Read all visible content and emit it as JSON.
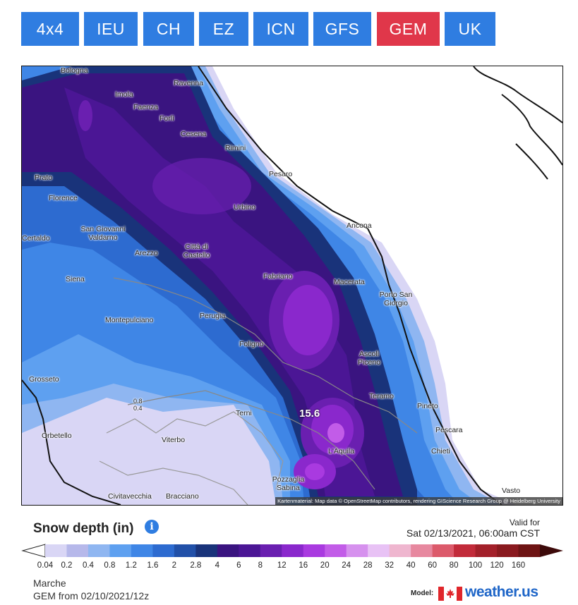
{
  "tabs": [
    {
      "label": "4x4",
      "color": "#2f7de1"
    },
    {
      "label": "IEU",
      "color": "#2f7de1"
    },
    {
      "label": "CH",
      "color": "#2f7de1"
    },
    {
      "label": "EZ",
      "color": "#2f7de1"
    },
    {
      "label": "ICN",
      "color": "#2f7de1"
    },
    {
      "label": "GFS",
      "color": "#2f7de1"
    },
    {
      "label": "GEM",
      "color": "#e0374a",
      "active": true
    },
    {
      "label": "UK",
      "color": "#2f7de1"
    }
  ],
  "map": {
    "max_value": "15.6",
    "attribution": "Kartenmaterial: Map data © OpenStreetMap contributors, rendering GIScience Research Group @ Heidelberg University",
    "cities": [
      "Bologna",
      "Ravenna",
      "Imola",
      "Faenza",
      "Forlì",
      "Cesena",
      "Rimini",
      "Pesaro",
      "Prato",
      "Florence",
      "Urbino",
      "Ancona",
      "San Giovanni Valdarno",
      "Certaldo",
      "Arezzo",
      "Città di Castello",
      "Fabriano",
      "Macerata",
      "Siena",
      "Porto San Giorgio",
      "Montepulciano",
      "Perugia",
      "Foligno",
      "Ascoli Piceno",
      "Grosseto",
      "Teramo",
      "Pineto",
      "Terni",
      "Pescara",
      "Orbetello",
      "Viterbo",
      "L'Aquila",
      "Chieti",
      "Pozzaglia Sabina",
      "Civitavecchia",
      "Bracciano",
      "Vasto"
    ],
    "contour_labels": [
      "0.8",
      "0.4"
    ]
  },
  "legend": {
    "title": "Snow depth (in)",
    "info_icon": "info-icon",
    "valid_label": "Valid for",
    "valid_date": "Sat 02/13/2021, 06:00am CST",
    "bins": [
      "0.04",
      "0.2",
      "0.4",
      "0.8",
      "1.2",
      "1.6",
      "2",
      "2.8",
      "4",
      "6",
      "8",
      "12",
      "16",
      "20",
      "24",
      "28",
      "32",
      "40",
      "60",
      "80",
      "100",
      "120",
      "160"
    ],
    "colors": [
      "#d9d6f5",
      "#b6b8ea",
      "#8fb6f1",
      "#5ea0f0",
      "#3f86e6",
      "#2d6bd0",
      "#2150a8",
      "#19337a",
      "#3a1480",
      "#4b1695",
      "#6a1fb0",
      "#8a28cc",
      "#a93ae0",
      "#c25ce8",
      "#d691ee",
      "#e8c2f5",
      "#efb6cf",
      "#e7889f",
      "#dc5a6b",
      "#c22b3a",
      "#a3202a",
      "#8a1a1f",
      "#6e1414"
    ]
  },
  "footer": {
    "region": "Marche",
    "run": "GEM from 02/10/2021/12z",
    "model_label": "Model:",
    "brand": "weather.us"
  }
}
